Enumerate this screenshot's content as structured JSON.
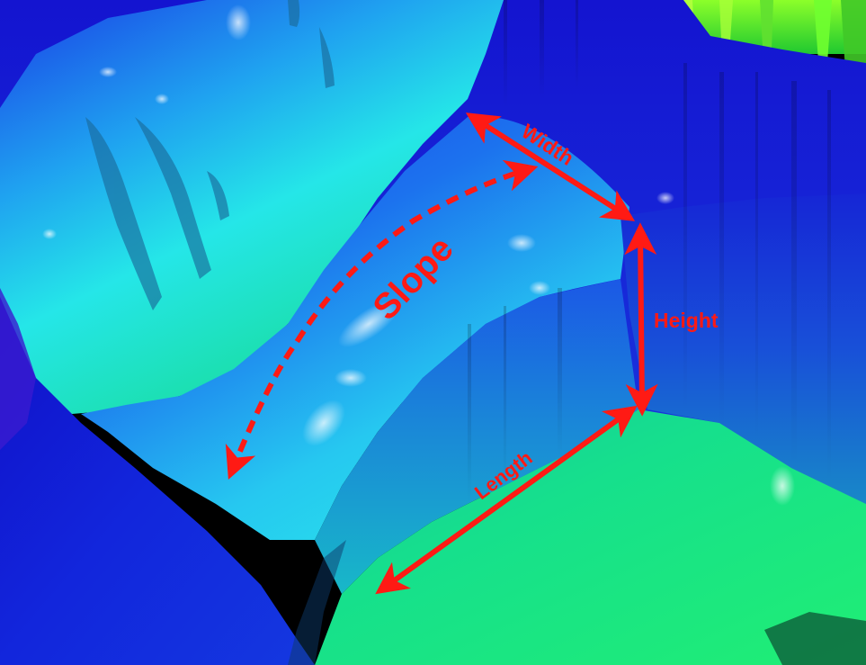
{
  "annotations": {
    "width_label": "Width",
    "height_label": "Height",
    "length_label": "Length",
    "slope_label": "Slope"
  },
  "colors": {
    "annotation": "#ff1a14",
    "deep_blue": "#1010d8",
    "blue": "#1e4ef0",
    "cyan": "#20d8f0",
    "green": "#18e888",
    "lime": "#80ff20",
    "background": "#000000"
  }
}
